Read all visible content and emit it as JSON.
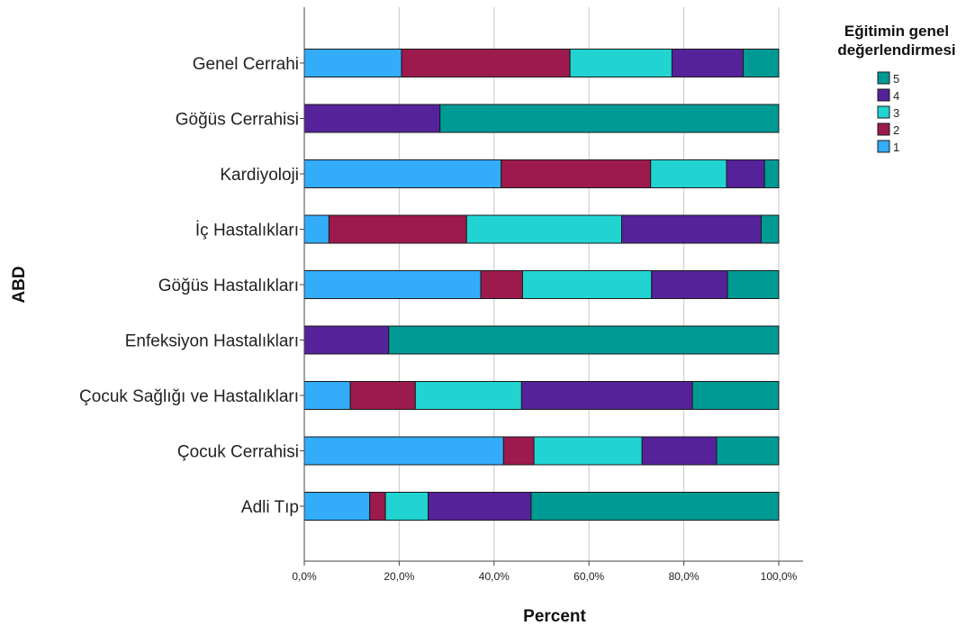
{
  "chart_data": {
    "type": "bar",
    "orientation": "horizontal",
    "stacked": true,
    "xlabel": "Percent",
    "ylabel": "ABD",
    "xlim": [
      0,
      100
    ],
    "x_ticks": [
      0,
      20,
      40,
      60,
      80,
      100
    ],
    "x_tick_labels": [
      "0,0%",
      "20,0%",
      "40,0%",
      "60,0%",
      "80,0%",
      "100,0%"
    ],
    "grid": "vertical",
    "categories": [
      "Genel Cerrahi",
      "Göğüs Cerrahisi",
      "Kardiyoloji",
      "İç Hastalıkları",
      "Göğüs Hastalıkları",
      "Enfeksiyon Hastalıkları",
      "Çocuk Sağlığı ve Hastalıkları",
      "Çocuk Cerrahisi",
      "Adli Tıp"
    ],
    "legend": {
      "title_line1": "Eğitimin genel",
      "title_line2": "değerlendirmesi",
      "placement": "top-right"
    },
    "series": [
      {
        "name": "1",
        "color": "#33acfa",
        "values": [
          20.5,
          0,
          41.5,
          5.2,
          37.2,
          0,
          9.7,
          42.0,
          13.8
        ]
      },
      {
        "name": "2",
        "color": "#9c1a4c",
        "values": [
          35.5,
          0,
          31.5,
          29.0,
          8.8,
          0,
          13.7,
          6.4,
          3.3
        ]
      },
      {
        "name": "3",
        "color": "#21d4d2",
        "values": [
          21.5,
          0,
          16.0,
          32.7,
          27.2,
          0,
          22.4,
          22.8,
          9.0
        ]
      },
      {
        "name": "4",
        "color": "#55229a",
        "values": [
          15.0,
          28.6,
          8.0,
          29.4,
          16.0,
          17.8,
          36.0,
          15.7,
          21.7
        ]
      },
      {
        "name": "5",
        "color": "#009a94",
        "values": [
          7.5,
          71.4,
          3.0,
          3.7,
          10.8,
          82.2,
          18.2,
          13.1,
          52.2
        ]
      }
    ]
  }
}
